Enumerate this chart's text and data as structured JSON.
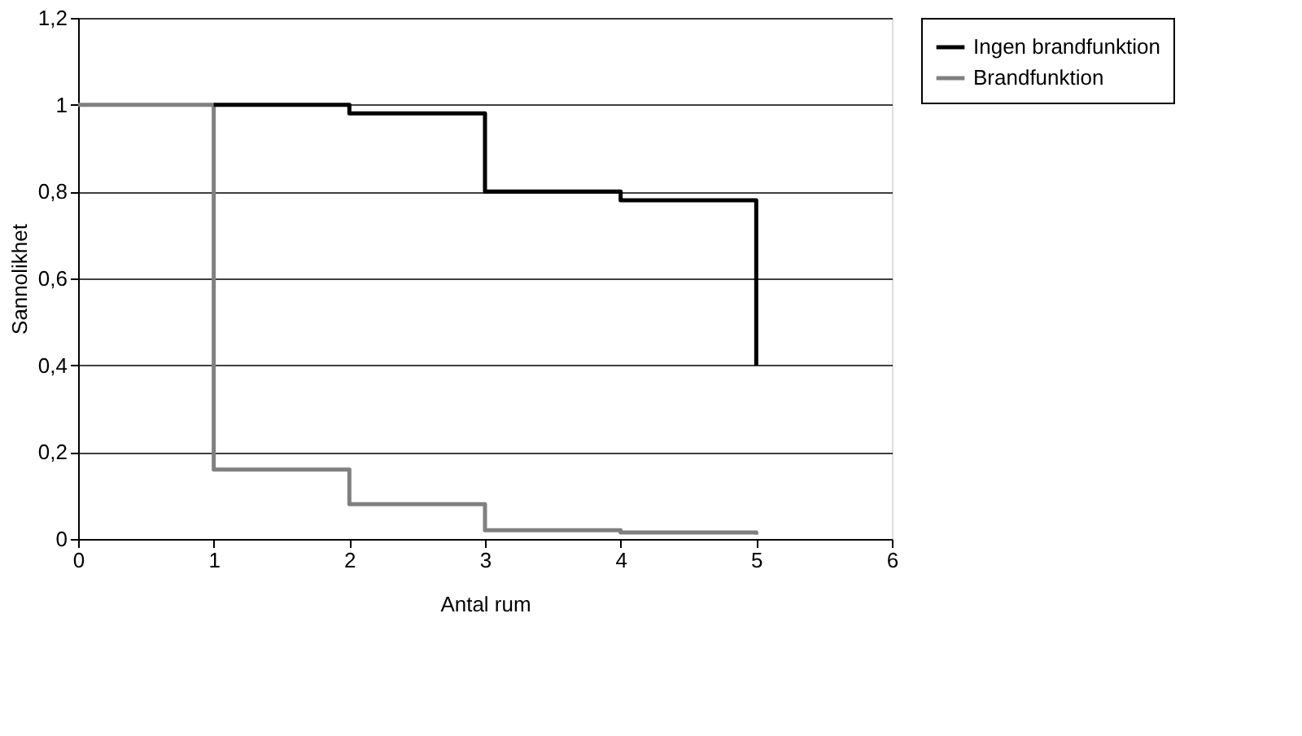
{
  "chart_data": {
    "type": "step",
    "xlabel": "Antal rum",
    "ylabel": "Sannolikhet",
    "xlim": [
      0,
      6
    ],
    "xticks": [
      0,
      1,
      2,
      3,
      4,
      5,
      6
    ],
    "ylim": [
      0,
      1.2
    ],
    "yticks": [
      0,
      {
        "value": 0.2,
        "label": "0,2"
      },
      {
        "value": 0.4,
        "label": "0,4"
      },
      {
        "value": 0.6,
        "label": "0,6"
      },
      {
        "value": 0.8,
        "label": "0,8"
      },
      1,
      {
        "value": 1.2,
        "label": "1,2"
      }
    ],
    "grid": "y",
    "legend": "right",
    "line_style": "solid",
    "marker": "none",
    "series": [
      {
        "name": "Ingen brandfunktion",
        "color": "#000000",
        "x": [
          1,
          2,
          3,
          4,
          5
        ],
        "values": [
          1,
          0.98,
          0.8,
          0.78,
          0.4
        ]
      },
      {
        "name": "Brandfunktion",
        "color": "#808080",
        "x": [
          0,
          1,
          2,
          3,
          4,
          5
        ],
        "values": [
          1,
          0.16,
          0.08,
          0.02,
          0.015,
          0.01
        ]
      }
    ]
  }
}
